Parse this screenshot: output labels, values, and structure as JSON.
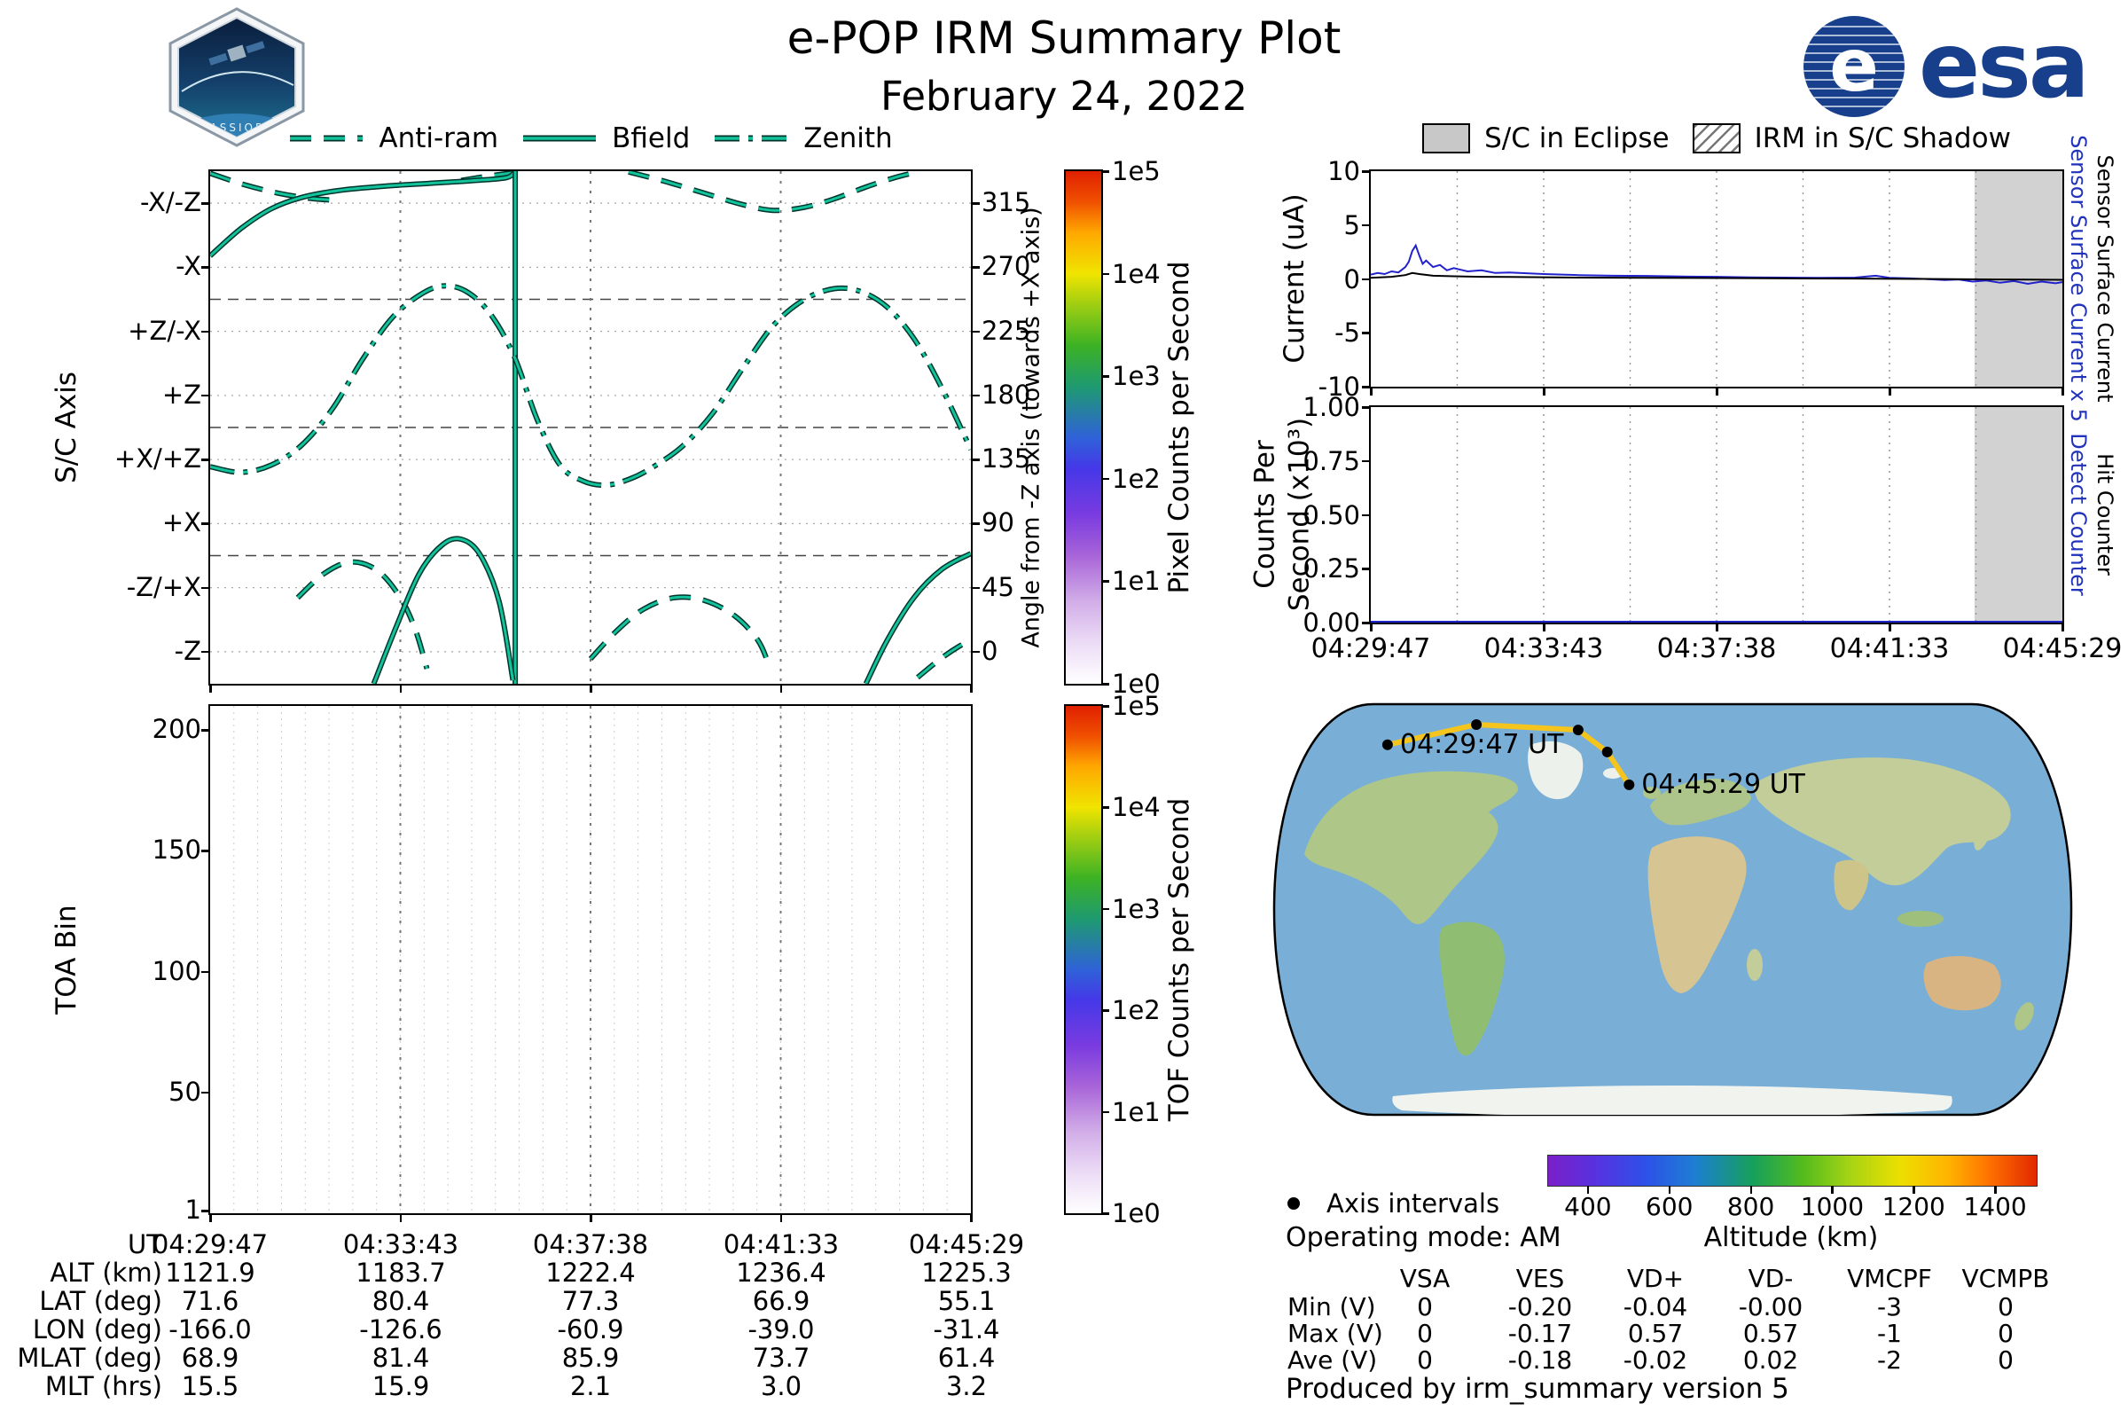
{
  "header": {
    "title": "e-POP IRM Summary Plot",
    "date": "February 24, 2022",
    "esa_logo_text": "esa",
    "patch_text": "CASSIOPE"
  },
  "time_ticks": [
    "04:29:47",
    "04:33:43",
    "04:37:38",
    "04:41:33",
    "04:45:29"
  ],
  "axis_labels": {
    "sc_axis": "S/C Axis",
    "angle": "Angle from -Z axis (towards +X axis)",
    "toa": "TOA Bin",
    "current": "Current (uA)",
    "counts": "Counts Per\nSecond (x10³)",
    "ssc5": "Sensor Surface Current x 5",
    "ssc": "Sensor Surface Current",
    "detect": "Detect Counter",
    "hit": "Hit Counter"
  },
  "pixel_colorbar": {
    "label": "Pixel Counts per Second",
    "ticks": [
      "1e5",
      "1e4",
      "1e3",
      "1e2",
      "1e1",
      "1e0"
    ]
  },
  "tof_colorbar": {
    "label": "TOF Counts per Second",
    "ticks": [
      "1e5",
      "1e4",
      "1e3",
      "1e2",
      "1e1",
      "1e0"
    ]
  },
  "eclipse_legend": {
    "eclipse": "S/C in Eclipse",
    "shadow": "IRM in S/C Shadow"
  },
  "ephemeris_table": {
    "ut_label": "UT",
    "rows": [
      {
        "label": "ALT (km)",
        "values": [
          "1121.9",
          "1183.7",
          "1222.4",
          "1236.4",
          "1225.3"
        ]
      },
      {
        "label": "LAT (deg)",
        "values": [
          "71.6",
          "80.4",
          "77.3",
          "66.9",
          "55.1"
        ]
      },
      {
        "label": "LON (deg)",
        "values": [
          "-166.0",
          "-126.6",
          "-60.9",
          "-39.0",
          "-31.4"
        ]
      },
      {
        "label": "MLAT (deg)",
        "values": [
          "68.9",
          "81.4",
          "85.9",
          "73.7",
          "61.4"
        ]
      },
      {
        "label": "MLT (hrs)",
        "values": [
          "15.5",
          "15.9",
          "2.1",
          "3.0",
          "3.2"
        ]
      }
    ]
  },
  "voltage_table": {
    "columns": [
      "VSA",
      "VES",
      "VD+",
      "VD-",
      "VMCPF",
      "VCMPB"
    ],
    "rows": [
      {
        "label": "Min (V)",
        "values": [
          "0",
          "-0.20",
          "-0.04",
          "-0.00",
          "-3",
          "0"
        ]
      },
      {
        "label": "Max (V)",
        "values": [
          "0",
          "-0.17",
          "0.57",
          "0.57",
          "-1",
          "0"
        ]
      },
      {
        "label": "Ave (V)",
        "values": [
          "0",
          "-0.18",
          "-0.02",
          "0.02",
          "-2",
          "0"
        ]
      }
    ]
  },
  "map": {
    "axis_intervals_label": "Axis intervals",
    "operating_mode": "Operating mode: AM",
    "altitude_bar": {
      "label": "Altitude (km)",
      "ticks": [
        400,
        600,
        800,
        1000,
        1200,
        1400
      ],
      "range": [
        300,
        1500
      ]
    }
  },
  "footer": {
    "produced_by": "Produced by irm_summary version 5"
  },
  "chart_data": [
    {
      "id": "sc_axis",
      "type": "line",
      "ylabel": "S/C Axis",
      "ylabel_right": "Angle from -Z axis (towards +X axis)",
      "ylim": [
        -22.5,
        337.5
      ],
      "ytick_degs": [
        315,
        270,
        225,
        180,
        135,
        90,
        45,
        0
      ],
      "yticks_left": [
        "-X/-Z",
        "-X",
        "+Z/-X",
        "+Z",
        "+X/+Z",
        "+X",
        "-Z/+X",
        "-Z"
      ],
      "yticks_right": [
        "315",
        "270",
        "225",
        "180",
        "135",
        "90",
        "45",
        "0"
      ],
      "hlines_dashed": [
        67.5,
        157.5,
        247.5
      ],
      "vlines": [
        0.25,
        0.5,
        0.75
      ],
      "xticks": [
        "04:29:47",
        "04:33:43",
        "04:37:38",
        "04:41:33",
        "04:45:29"
      ],
      "legend": [
        "Anti-ram",
        "Bfield",
        "Zenith"
      ],
      "series": [
        {
          "name": "Anti-ram",
          "style": "dashed",
          "segments": [
            [
              [
                0,
                336
              ],
              [
                0.045,
                328
              ],
              [
                0.09,
                322
              ],
              [
                0.13,
                318.5
              ],
              [
                0.165,
                317
              ]
            ],
            [
              [
                0.33,
                331
              ],
              [
                0.365,
                334
              ],
              [
                0.4,
                336.5
              ]
            ],
            [
              [
                0.55,
                337
              ],
              [
                0.6,
                330
              ],
              [
                0.65,
                322
              ],
              [
                0.7,
                314
              ],
              [
                0.74,
                310
              ],
              [
                0.78,
                312
              ],
              [
                0.82,
                318
              ],
              [
                0.86,
                326
              ],
              [
                0.9,
                333
              ],
              [
                0.93,
                337
              ]
            ],
            [
              [
                0.5,
                -5
              ],
              [
                0.535,
                15
              ],
              [
                0.57,
                30
              ],
              [
                0.61,
                38
              ],
              [
                0.65,
                36
              ],
              [
                0.69,
                25
              ],
              [
                0.72,
                8
              ],
              [
                0.735,
                -10
              ]
            ],
            [
              [
                0.115,
                38
              ],
              [
                0.15,
                55
              ],
              [
                0.185,
                63
              ],
              [
                0.22,
                57
              ],
              [
                0.25,
                38
              ],
              [
                0.27,
                15
              ],
              [
                0.285,
                -12
              ]
            ],
            [
              [
                0.93,
                -18
              ],
              [
                0.96,
                -5
              ],
              [
                0.985,
                4
              ],
              [
                1,
                8
              ]
            ]
          ]
        },
        {
          "name": "Bfield",
          "style": "solid",
          "segments": [
            [
              [
                0,
                278
              ],
              [
                0.04,
                297
              ],
              [
                0.08,
                311
              ],
              [
                0.12,
                319
              ],
              [
                0.17,
                324
              ],
              [
                0.23,
                327
              ],
              [
                0.29,
                329
              ],
              [
                0.35,
                331
              ],
              [
                0.39,
                333
              ],
              [
                0.401,
                337.5
              ]
            ],
            [
              [
                0.401,
                337.5
              ],
              [
                0.401,
                -22.5
              ]
            ],
            [
              [
                0.215,
                -22.5
              ],
              [
                0.245,
                18
              ],
              [
                0.275,
                55
              ],
              [
                0.305,
                75
              ],
              [
                0.33,
                79
              ],
              [
                0.355,
                68
              ],
              [
                0.38,
                35
              ],
              [
                0.398,
                -20
              ]
            ],
            [
              [
                0.862,
                -22.5
              ],
              [
                0.89,
                8
              ],
              [
                0.925,
                38
              ],
              [
                0.962,
                58
              ],
              [
                1,
                69
              ]
            ]
          ]
        },
        {
          "name": "Zenith",
          "style": "dashdot",
          "segments": [
            [
              [
                0,
                130
              ],
              [
                0.04,
                126
              ],
              [
                0.08,
                131
              ],
              [
                0.12,
                145
              ],
              [
                0.16,
                170
              ],
              [
                0.2,
                205
              ],
              [
                0.24,
                235
              ],
              [
                0.28,
                252
              ],
              [
                0.31,
                257
              ],
              [
                0.34,
                252
              ],
              [
                0.37,
                236
              ],
              [
                0.4,
                207
              ],
              [
                0.43,
                163
              ],
              [
                0.46,
                131
              ],
              [
                0.49,
                120
              ],
              [
                0.52,
                117
              ],
              [
                0.55,
                121
              ],
              [
                0.58,
                129
              ],
              [
                0.62,
                144
              ],
              [
                0.66,
                167
              ],
              [
                0.7,
                199
              ],
              [
                0.74,
                229
              ],
              [
                0.78,
                247
              ],
              [
                0.82,
                255
              ],
              [
                0.855,
                253
              ],
              [
                0.89,
                242
              ],
              [
                0.925,
                220
              ],
              [
                0.96,
                187
              ],
              [
                1,
                142
              ]
            ]
          ]
        }
      ]
    },
    {
      "id": "toa",
      "type": "heatmap",
      "ylabel": "TOA Bin",
      "ylim": [
        0,
        210
      ],
      "yticks": [
        200,
        150,
        100,
        50,
        1
      ],
      "vlines": [
        0.25,
        0.5,
        0.75
      ],
      "values": []
    },
    {
      "id": "current",
      "type": "line",
      "ylabel": "Current (uA)",
      "ylim": [
        -10,
        10
      ],
      "yticks": [
        10,
        5,
        0,
        -5,
        -10
      ],
      "eclipse_span": [
        0.873,
        1.0
      ],
      "xticks": [
        "04:29:47",
        "04:33:43",
        "04:37:38",
        "04:41:33",
        "04:45:29"
      ],
      "series": [
        {
          "name": "Sensor Surface Current x 5",
          "color": "blue",
          "points": [
            [
              0,
              0.4
            ],
            [
              0.01,
              0.55
            ],
            [
              0.02,
              0.45
            ],
            [
              0.03,
              0.7
            ],
            [
              0.04,
              0.6
            ],
            [
              0.05,
              1.1
            ],
            [
              0.055,
              1.6
            ],
            [
              0.06,
              2.6
            ],
            [
              0.065,
              3.1
            ],
            [
              0.07,
              2.2
            ],
            [
              0.075,
              1.4
            ],
            [
              0.08,
              1.7
            ],
            [
              0.09,
              1.1
            ],
            [
              0.1,
              1.3
            ],
            [
              0.11,
              0.8
            ],
            [
              0.12,
              1.0
            ],
            [
              0.14,
              0.7
            ],
            [
              0.16,
              0.8
            ],
            [
              0.18,
              0.55
            ],
            [
              0.2,
              0.6
            ],
            [
              0.25,
              0.45
            ],
            [
              0.3,
              0.35
            ],
            [
              0.35,
              0.3
            ],
            [
              0.4,
              0.28
            ],
            [
              0.45,
              0.22
            ],
            [
              0.5,
              0.2
            ],
            [
              0.55,
              0.15
            ],
            [
              0.6,
              0.12
            ],
            [
              0.65,
              0.1
            ],
            [
              0.7,
              0.12
            ],
            [
              0.73,
              0.3
            ],
            [
              0.75,
              0.1
            ],
            [
              0.78,
              0.05
            ],
            [
              0.8,
              0
            ],
            [
              0.83,
              -0.1
            ],
            [
              0.85,
              -0.05
            ],
            [
              0.87,
              -0.25
            ],
            [
              0.89,
              -0.15
            ],
            [
              0.91,
              -0.35
            ],
            [
              0.93,
              -0.2
            ],
            [
              0.95,
              -0.45
            ],
            [
              0.97,
              -0.25
            ],
            [
              0.99,
              -0.4
            ],
            [
              1,
              -0.3
            ]
          ]
        },
        {
          "name": "Sensor Surface Current",
          "color": "black",
          "points": [
            [
              0,
              0.1
            ],
            [
              0.03,
              0.2
            ],
            [
              0.05,
              0.35
            ],
            [
              0.06,
              0.55
            ],
            [
              0.07,
              0.45
            ],
            [
              0.09,
              0.3
            ],
            [
              0.12,
              0.25
            ],
            [
              0.16,
              0.2
            ],
            [
              0.2,
              0.18
            ],
            [
              0.3,
              0.12
            ],
            [
              0.4,
              0.1
            ],
            [
              0.5,
              0.08
            ],
            [
              0.6,
              0.05
            ],
            [
              0.7,
              0.03
            ],
            [
              0.8,
              0
            ],
            [
              0.9,
              -0.05
            ],
            [
              1,
              -0.08
            ]
          ]
        }
      ]
    },
    {
      "id": "counts",
      "type": "line",
      "ylabel": "Counts Per Second (x10³)",
      "ylim": [
        0,
        1
      ],
      "yticks": [
        "1.00",
        "0.75",
        "0.50",
        "0.25",
        "0.00"
      ],
      "ytick_vals": [
        1,
        0.75,
        0.5,
        0.25,
        0
      ],
      "eclipse_span": [
        0.873,
        1.0
      ],
      "series": [
        {
          "name": "Detect Counter",
          "color": "blue",
          "points": [
            [
              0,
              0.004
            ],
            [
              1,
              0.004
            ]
          ]
        }
      ]
    },
    {
      "id": "ground_track",
      "type": "scatter",
      "track": [
        [
          0.147,
          0.109
        ],
        [
          0.257,
          0.061
        ],
        [
          0.383,
          0.074
        ],
        [
          0.419,
          0.126
        ],
        [
          0.446,
          0.204
        ]
      ],
      "dots": [
        0,
        1,
        2,
        3,
        4
      ],
      "labels": [
        {
          "text": "04:29:47 UT",
          "at": 0
        },
        {
          "text": "04:45:29 UT",
          "at": 4
        }
      ]
    }
  ]
}
